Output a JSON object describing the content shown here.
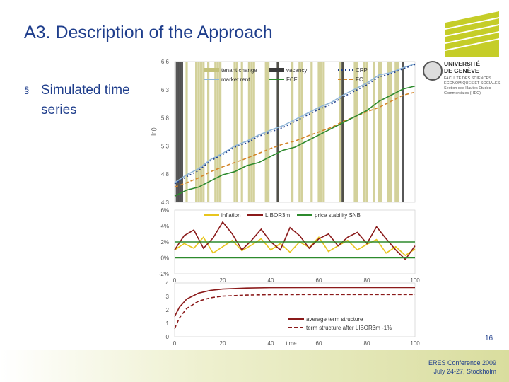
{
  "slide": {
    "title": "A3. Description of the Approach",
    "bullet": "Simulated time series",
    "page_number": "16",
    "conference": "ERES Conference 2009",
    "conference_date": "July 24-27, Stockholm",
    "university": {
      "name_line1": "UNIVERSITÉ",
      "name_line2": "DE GENÈVE",
      "faculty_line1": "FACULTÉ DES SCIENCES",
      "faculty_line2": "ÉCONOMIQUES ET SOCIALES",
      "faculty_line3": "Section des Hautes Études",
      "faculty_line4": "Commerciales (HEC)"
    },
    "colors": {
      "title": "#1f3e8c",
      "logo": "#c5cd28",
      "band": "#d9dd9e"
    }
  },
  "chart_data": [
    {
      "type": "line",
      "ylabel": "ln()",
      "ylim": [
        4.3,
        6.6
      ],
      "yticks": [
        "6.6",
        "6.3",
        "5.8",
        "5.3",
        "4.8",
        "4.3"
      ],
      "legend": [
        "tenant change",
        "vacancy",
        "CRP",
        "market rent",
        "FCF",
        "FC"
      ],
      "tenant_change_periods": [
        5,
        9,
        10,
        11,
        12,
        14,
        17,
        18,
        19,
        25,
        26,
        28,
        31,
        32,
        33,
        38,
        39,
        43,
        49,
        52,
        53,
        57,
        60,
        61,
        62,
        69,
        70,
        75,
        76,
        79,
        80,
        83,
        85,
        86,
        89,
        90,
        92,
        93
      ],
      "vacancy_periods": [
        1,
        2,
        3,
        43,
        70,
        95
      ],
      "series": [
        {
          "name": "market rent",
          "color": "#8fb6d8",
          "x": [
            0,
            5,
            10,
            15,
            20,
            25,
            30,
            35,
            40,
            45,
            50,
            55,
            60,
            65,
            70,
            75,
            80,
            85,
            90,
            95,
            100
          ],
          "values": [
            4.62,
            4.75,
            4.85,
            5.0,
            5.1,
            5.22,
            5.3,
            5.4,
            5.48,
            5.55,
            5.65,
            5.75,
            5.85,
            5.93,
            6.05,
            6.15,
            6.25,
            6.38,
            6.42,
            6.5,
            6.56
          ]
        },
        {
          "name": "CRP",
          "color": "#1f3e8c",
          "x": [
            0,
            5,
            10,
            15,
            20,
            25,
            30,
            35,
            40,
            45,
            50,
            55,
            60,
            65,
            70,
            75,
            80,
            85,
            90,
            95,
            100
          ],
          "values": [
            4.6,
            4.72,
            4.82,
            4.98,
            5.08,
            5.2,
            5.27,
            5.38,
            5.45,
            5.52,
            5.62,
            5.72,
            5.82,
            5.9,
            6.02,
            6.12,
            6.22,
            6.35,
            6.4,
            6.48,
            6.55
          ]
        },
        {
          "name": "FC",
          "color": "#d4862a",
          "x": [
            0,
            5,
            10,
            15,
            20,
            25,
            30,
            35,
            40,
            45,
            50,
            55,
            60,
            65,
            70,
            75,
            80,
            85,
            90,
            95,
            100
          ],
          "values": [
            4.55,
            4.62,
            4.7,
            4.8,
            4.88,
            4.95,
            5.02,
            5.1,
            5.18,
            5.25,
            5.3,
            5.38,
            5.45,
            5.52,
            5.62,
            5.7,
            5.78,
            5.85,
            5.95,
            6.05,
            6.1
          ]
        },
        {
          "name": "FCF",
          "color": "#2d8a2d",
          "x": [
            0,
            5,
            10,
            15,
            20,
            25,
            30,
            35,
            40,
            45,
            50,
            55,
            60,
            65,
            70,
            75,
            80,
            85,
            90,
            95,
            100
          ],
          "values": [
            4.4,
            4.5,
            4.55,
            4.65,
            4.75,
            4.8,
            4.9,
            4.95,
            5.05,
            5.15,
            5.2,
            5.3,
            5.4,
            5.5,
            5.6,
            5.7,
            5.8,
            5.95,
            6.05,
            6.15,
            6.2
          ]
        }
      ]
    },
    {
      "type": "line",
      "ylim": [
        -2,
        6
      ],
      "yticks": [
        "6%",
        "4%",
        "2%",
        "0%",
        "-2%"
      ],
      "xticks": [
        "0",
        "20",
        "40",
        "60",
        "80",
        "100"
      ],
      "legend": [
        "inflation",
        "LIBOR3m",
        "price stability SNB"
      ],
      "series": [
        {
          "name": "inflation",
          "color": "#e8c51e",
          "x": [
            0,
            4,
            8,
            12,
            16,
            20,
            24,
            28,
            32,
            36,
            40,
            44,
            48,
            52,
            56,
            60,
            64,
            68,
            72,
            76,
            80,
            84,
            88,
            92,
            96,
            100
          ],
          "values": [
            1.0,
            1.8,
            1.2,
            2.6,
            0.6,
            1.4,
            2.2,
            0.9,
            1.6,
            2.4,
            1.0,
            1.8,
            0.7,
            2.0,
            1.3,
            2.6,
            0.8,
            1.5,
            2.2,
            1.0,
            1.7,
            2.3,
            0.6,
            1.4,
            0.3,
            1.1
          ]
        },
        {
          "name": "LIBOR3m",
          "color": "#8b1a1a",
          "x": [
            0,
            4,
            8,
            12,
            16,
            20,
            24,
            28,
            32,
            36,
            40,
            44,
            48,
            52,
            56,
            60,
            64,
            68,
            72,
            76,
            80,
            84,
            88,
            92,
            96,
            100
          ],
          "values": [
            1.0,
            2.8,
            3.5,
            1.2,
            2.5,
            4.5,
            3.0,
            1.0,
            2.2,
            3.6,
            2.0,
            1.0,
            3.8,
            2.8,
            1.2,
            2.4,
            3.0,
            1.5,
            2.6,
            3.2,
            1.8,
            3.9,
            2.4,
            1.0,
            -0.2,
            1.5
          ]
        },
        {
          "name": "price stability SNB",
          "color": "#2d8a2d",
          "x": [
            0,
            100
          ],
          "values": [
            2,
            2
          ]
        },
        {
          "color": "#2d8a2d",
          "x": [
            0,
            100
          ],
          "values": [
            0,
            0
          ]
        }
      ]
    },
    {
      "type": "line",
      "ylim": [
        0,
        4
      ],
      "yticks": [
        "4",
        "3",
        "2",
        "1",
        "0"
      ],
      "xticks": [
        "0",
        "20",
        "40",
        "60",
        "80",
        "100"
      ],
      "xlabel": "time",
      "legend": [
        "average term structure",
        "term structure after LIBOR3m -1%"
      ],
      "series": [
        {
          "name": "average term structure",
          "color": "#8b1a1a",
          "style": "solid",
          "x": [
            0,
            2,
            5,
            10,
            15,
            20,
            30,
            40,
            60,
            80,
            100
          ],
          "values": [
            1.5,
            2.2,
            2.8,
            3.25,
            3.45,
            3.55,
            3.62,
            3.65,
            3.66,
            3.66,
            3.66
          ]
        },
        {
          "name": "term structure after LIBOR3m -1%",
          "color": "#8b1a1a",
          "style": "dashed",
          "x": [
            0,
            2,
            5,
            10,
            15,
            20,
            30,
            40,
            60,
            80,
            100
          ],
          "values": [
            0.6,
            1.4,
            2.1,
            2.65,
            2.9,
            3.02,
            3.1,
            3.13,
            3.14,
            3.14,
            3.14
          ]
        }
      ]
    }
  ]
}
